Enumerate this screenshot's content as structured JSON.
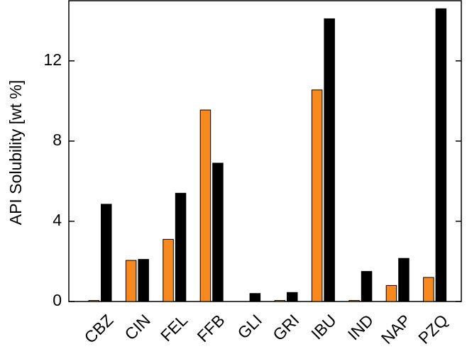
{
  "chart_data": {
    "type": "bar",
    "y_label": "API Solubility [wt %]",
    "categories": [
      "CBZ",
      "CIN",
      "FEL",
      "FFB",
      "GLI",
      "GRI",
      "IBU",
      "IND",
      "NAP",
      "PZQ"
    ],
    "series": [
      {
        "color": "#f7891f",
        "values": [
          0.05,
          2.05,
          3.1,
          9.55,
          0,
          0.05,
          10.55,
          0.05,
          0.8,
          1.2
        ]
      },
      {
        "color": "#000000",
        "values": [
          4.85,
          2.1,
          5.4,
          6.9,
          0.4,
          0.45,
          14.1,
          1.5,
          2.15,
          14.6
        ]
      }
    ],
    "ylim": [
      0,
      15
    ],
    "yticks": [
      0,
      4,
      8,
      12
    ],
    "grid": false
  }
}
